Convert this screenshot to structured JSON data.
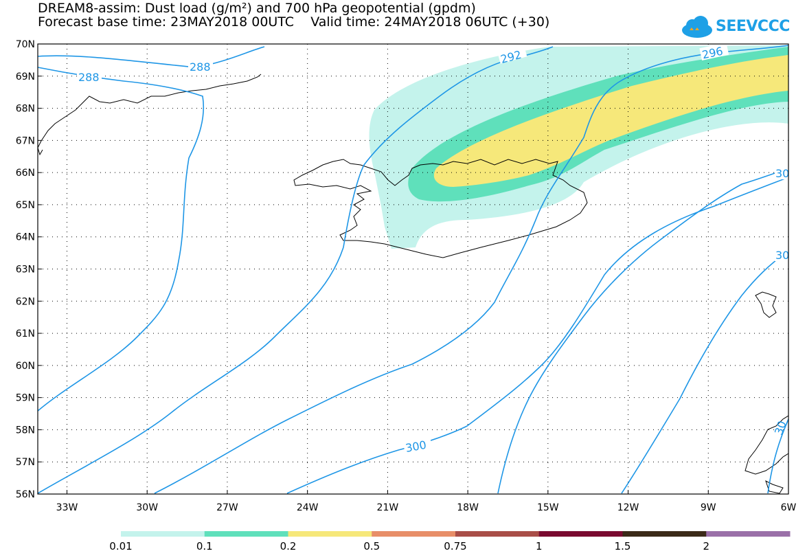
{
  "title": {
    "line1": "DREAM8-assim: Dust load (g/m²) and 700 hPa geopotential (gpdm)",
    "line2": "Forecast base time: 23MAY2018 00UTC    Valid time: 24MAY2018 06UTC (+30)"
  },
  "logo": {
    "text": "SEEVCCC",
    "icon": "cloud-icon",
    "color": "#1ea0e6"
  },
  "map": {
    "lat_labels": [
      "70N",
      "69N",
      "68N",
      "67N",
      "66N",
      "65N",
      "64N",
      "63N",
      "62N",
      "61N",
      "60N",
      "59N",
      "58N",
      "57N",
      "56N"
    ],
    "lon_labels": [
      "33W",
      "30W",
      "27W",
      "24W",
      "21W",
      "18W",
      "15W",
      "12W",
      "9W",
      "6W"
    ],
    "contour_labels": [
      "288",
      "288",
      "292",
      "296",
      "300",
      "300",
      "30",
      "30",
      "30"
    ],
    "contour_color": "#1e96e6",
    "dust_colors": [
      "#c4f3ec",
      "#5fe0bb",
      "#f6e87a"
    ]
  },
  "colorbar": {
    "labels": [
      "0.01",
      "0.1",
      "0.2",
      "0.5",
      "0.75",
      "1",
      "1.5",
      "2"
    ],
    "colors": [
      "#c4f3ec",
      "#5fe0bb",
      "#f6e87a",
      "#e88e68",
      "#a94e48",
      "#7a0a30",
      "#3b2a18",
      "#9a70a8"
    ]
  }
}
